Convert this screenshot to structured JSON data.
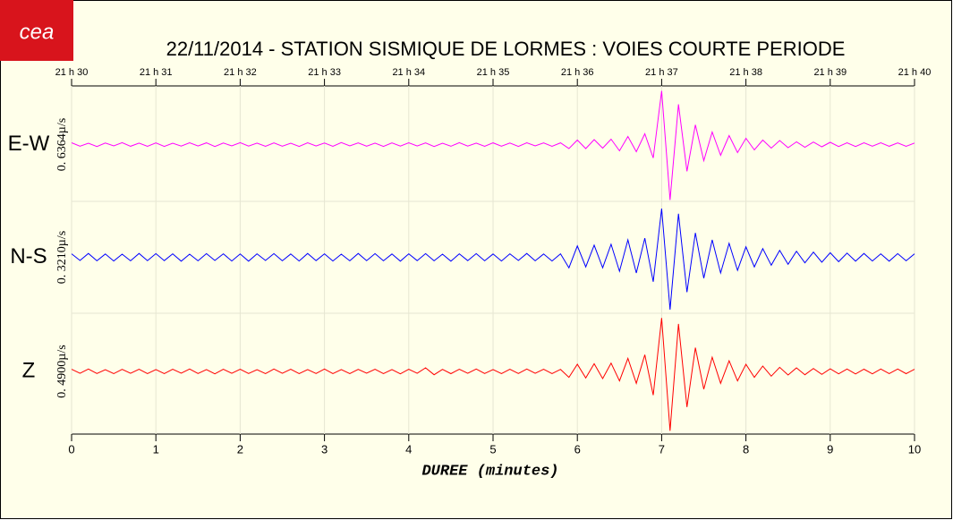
{
  "logo": "cea",
  "chart_data": {
    "type": "seismogram",
    "title": "22/11/2014  -  STATION SISMIQUE DE LORMES : VOIES COURTE PERIODE",
    "xlabel": "DUREE (minutes)",
    "xlim": [
      0,
      10
    ],
    "xticks": [
      0,
      1,
      2,
      3,
      4,
      5,
      6,
      7,
      8,
      9,
      10
    ],
    "top_xticks": [
      {
        "value": 0,
        "label": "21 h 30"
      },
      {
        "value": 1,
        "label": "21 h 31"
      },
      {
        "value": 2,
        "label": "21 h 32"
      },
      {
        "value": 3,
        "label": "21 h 33"
      },
      {
        "value": 4,
        "label": "21 h 34"
      },
      {
        "value": 5,
        "label": "21 h 35"
      },
      {
        "value": 6,
        "label": "21 h 36"
      },
      {
        "value": 7,
        "label": "21 h 37"
      },
      {
        "value": 8,
        "label": "21 h 38"
      },
      {
        "value": 9,
        "label": "21 h 39"
      },
      {
        "value": 10,
        "label": "21 h 40"
      }
    ],
    "grid": true,
    "x": [
      0,
      0.1,
      0.2,
      0.3,
      0.4,
      0.5,
      0.6,
      0.7,
      0.8,
      0.9,
      1,
      1.1,
      1.2,
      1.3,
      1.4,
      1.5,
      1.6,
      1.7,
      1.8,
      1.9,
      2,
      2.1,
      2.2,
      2.3,
      2.4,
      2.5,
      2.6,
      2.7,
      2.8,
      2.9,
      3,
      3.1,
      3.2,
      3.3,
      3.4,
      3.5,
      3.6,
      3.7,
      3.8,
      3.9,
      4,
      4.1,
      4.2,
      4.3,
      4.4,
      4.5,
      4.6,
      4.7,
      4.8,
      4.9,
      5,
      5.1,
      5.2,
      5.3,
      5.4,
      5.5,
      5.6,
      5.7,
      5.8,
      5.9,
      6,
      6.1,
      6.2,
      6.3,
      6.4,
      6.5,
      6.6,
      6.7,
      6.8,
      6.9,
      7,
      7.1,
      7.2,
      7.3,
      7.4,
      7.5,
      7.6,
      7.7,
      7.8,
      7.9,
      8,
      8.1,
      8.2,
      8.3,
      8.4,
      8.5,
      8.6,
      8.7,
      8.8,
      8.9,
      9,
      9.1,
      9.2,
      9.3,
      9.4,
      9.5,
      9.6,
      9.7,
      9.8,
      9.9,
      10
    ],
    "series": [
      {
        "name": "E-W",
        "color": "#ff00ff",
        "scale_label": "0. 6364µ/s",
        "ylim": [
          -0.6364,
          0.6364
        ],
        "values": [
          0.02,
          -0.018,
          0.015,
          -0.022,
          0.017,
          -0.015,
          0.021,
          -0.019,
          0.016,
          -0.02,
          0.018,
          -0.021,
          0.015,
          -0.017,
          0.02,
          -0.016,
          0.019,
          -0.022,
          0.017,
          -0.015,
          0.021,
          -0.017,
          0.016,
          -0.02,
          0.018,
          -0.019,
          0.015,
          -0.021,
          0.02,
          -0.016,
          0.017,
          -0.02,
          0.022,
          -0.015,
          0.019,
          -0.018,
          0.016,
          -0.021,
          0.018,
          -0.017,
          0.02,
          -0.016,
          0.018,
          -0.022,
          0.015,
          -0.019,
          0.021,
          -0.017,
          0.016,
          -0.02,
          0.019,
          -0.018,
          0.017,
          -0.021,
          0.02,
          -0.015,
          0.018,
          -0.02,
          0.019,
          -0.045,
          0.05,
          -0.045,
          0.055,
          -0.04,
          0.06,
          -0.07,
          0.09,
          -0.08,
          0.12,
          -0.15,
          0.6,
          -0.62,
          0.45,
          -0.3,
          0.22,
          -0.18,
          0.14,
          -0.12,
          0.1,
          -0.09,
          0.07,
          -0.06,
          0.05,
          -0.04,
          0.045,
          -0.035,
          0.03,
          -0.03,
          0.028,
          -0.025,
          0.025,
          -0.022,
          0.02,
          -0.022,
          0.02,
          -0.018,
          0.02,
          -0.019,
          0.018,
          -0.02,
          0.017
        ]
      },
      {
        "name": "N-S",
        "color": "#0000ff",
        "scale_label": "0. 3210µ/s",
        "ylim": [
          -0.321,
          0.321
        ],
        "values": [
          0.02,
          -0.018,
          0.022,
          -0.02,
          0.019,
          -0.021,
          0.018,
          -0.02,
          0.022,
          -0.019,
          0.021,
          -0.019,
          0.02,
          -0.022,
          0.018,
          -0.02,
          0.021,
          -0.018,
          0.02,
          -0.021,
          0.019,
          -0.022,
          0.02,
          -0.018,
          0.021,
          -0.02,
          0.019,
          -0.021,
          0.022,
          -0.019,
          0.02,
          -0.021,
          0.018,
          -0.02,
          0.022,
          -0.019,
          0.021,
          -0.02,
          0.019,
          -0.022,
          0.02,
          -0.019,
          0.021,
          -0.02,
          0.018,
          -0.022,
          0.02,
          -0.019,
          0.021,
          -0.02,
          0.019,
          -0.021,
          0.02,
          -0.018,
          0.022,
          -0.02,
          0.019,
          -0.021,
          0.02,
          -0.06,
          0.065,
          -0.055,
          0.07,
          -0.06,
          0.075,
          -0.08,
          0.1,
          -0.09,
          0.11,
          -0.14,
          0.28,
          -0.3,
          0.25,
          -0.2,
          0.14,
          -0.12,
          0.1,
          -0.09,
          0.08,
          -0.075,
          0.06,
          -0.055,
          0.05,
          -0.045,
          0.04,
          -0.04,
          0.035,
          -0.032,
          0.03,
          -0.028,
          0.026,
          -0.025,
          0.024,
          -0.022,
          0.022,
          -0.021,
          0.02,
          -0.022,
          0.021,
          -0.02,
          0.02
        ]
      },
      {
        "name": "Z",
        "color": "#ff0000",
        "scale_label": "0. 4900µ/s",
        "ylim": [
          -0.49,
          0.49
        ],
        "values": [
          0.018,
          -0.016,
          0.02,
          -0.017,
          0.015,
          -0.019,
          0.017,
          -0.016,
          0.019,
          -0.018,
          0.016,
          -0.019,
          0.018,
          -0.015,
          0.02,
          -0.017,
          0.016,
          -0.02,
          0.018,
          -0.016,
          0.019,
          -0.017,
          0.015,
          -0.018,
          0.02,
          -0.016,
          0.018,
          -0.019,
          0.016,
          -0.017,
          0.02,
          -0.018,
          0.016,
          -0.019,
          0.017,
          -0.015,
          0.019,
          -0.018,
          0.016,
          -0.02,
          0.018,
          -0.016,
          0.03,
          -0.028,
          0.017,
          -0.019,
          0.018,
          -0.016,
          0.02,
          -0.017,
          0.016,
          -0.019,
          0.018,
          -0.017,
          0.02,
          -0.016,
          0.019,
          -0.018,
          0.017,
          -0.05,
          0.06,
          -0.055,
          0.065,
          -0.06,
          0.07,
          -0.08,
          0.11,
          -0.1,
          0.14,
          -0.2,
          0.45,
          -0.5,
          0.4,
          -0.3,
          0.2,
          -0.15,
          0.12,
          -0.1,
          0.09,
          -0.08,
          0.06,
          -0.05,
          0.045,
          -0.04,
          0.035,
          -0.03,
          0.03,
          -0.028,
          0.025,
          -0.025,
          0.022,
          -0.02,
          0.02,
          -0.021,
          0.019,
          -0.02,
          0.02,
          -0.018,
          0.02,
          -0.019,
          0.018
        ]
      }
    ]
  }
}
